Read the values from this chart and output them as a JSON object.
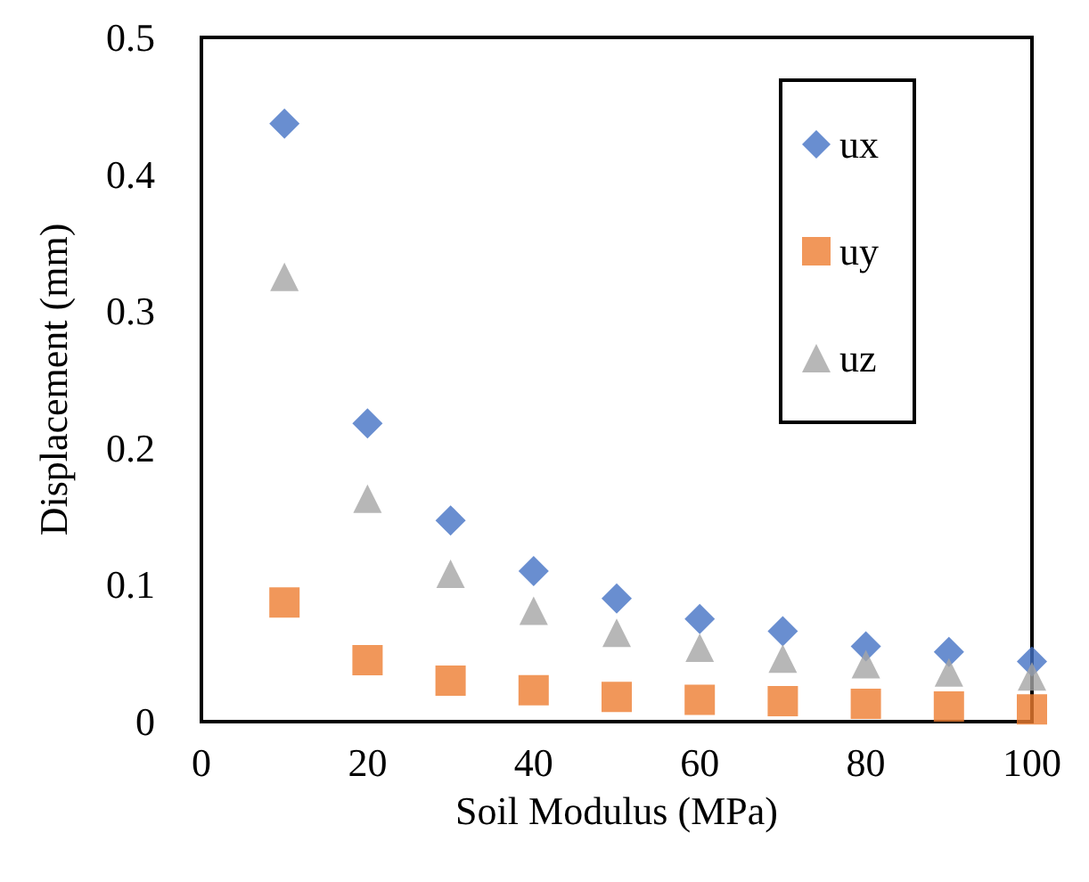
{
  "chart_data": {
    "type": "scatter",
    "xlabel": "Soil Modulus (MPa)",
    "ylabel": "Displacement (mm)",
    "x": [
      10,
      20,
      30,
      40,
      50,
      60,
      70,
      80,
      90,
      100
    ],
    "series": [
      {
        "name": "ux",
        "color": "#4472c4",
        "marker": "diamond",
        "values": [
          0.437,
          0.218,
          0.147,
          0.11,
          0.09,
          0.075,
          0.066,
          0.055,
          0.051,
          0.044
        ]
      },
      {
        "name": "uy",
        "color": "#ed7d31",
        "marker": "square",
        "values": [
          0.087,
          0.045,
          0.03,
          0.023,
          0.018,
          0.016,
          0.015,
          0.013,
          0.011,
          0.009
        ]
      },
      {
        "name": "uz",
        "color": "#a5a5a5",
        "marker": "triangle",
        "values": [
          0.325,
          0.163,
          0.108,
          0.081,
          0.065,
          0.054,
          0.046,
          0.042,
          0.036,
          0.033
        ]
      }
    ],
    "xlim": [
      0,
      100
    ],
    "xticks": [
      0,
      20,
      40,
      60,
      80,
      100
    ],
    "ylim": [
      0,
      0.5
    ],
    "yticks": [
      0,
      0.1,
      0.2,
      0.3,
      0.4,
      0.5
    ],
    "grid": false,
    "legend": "top right"
  }
}
